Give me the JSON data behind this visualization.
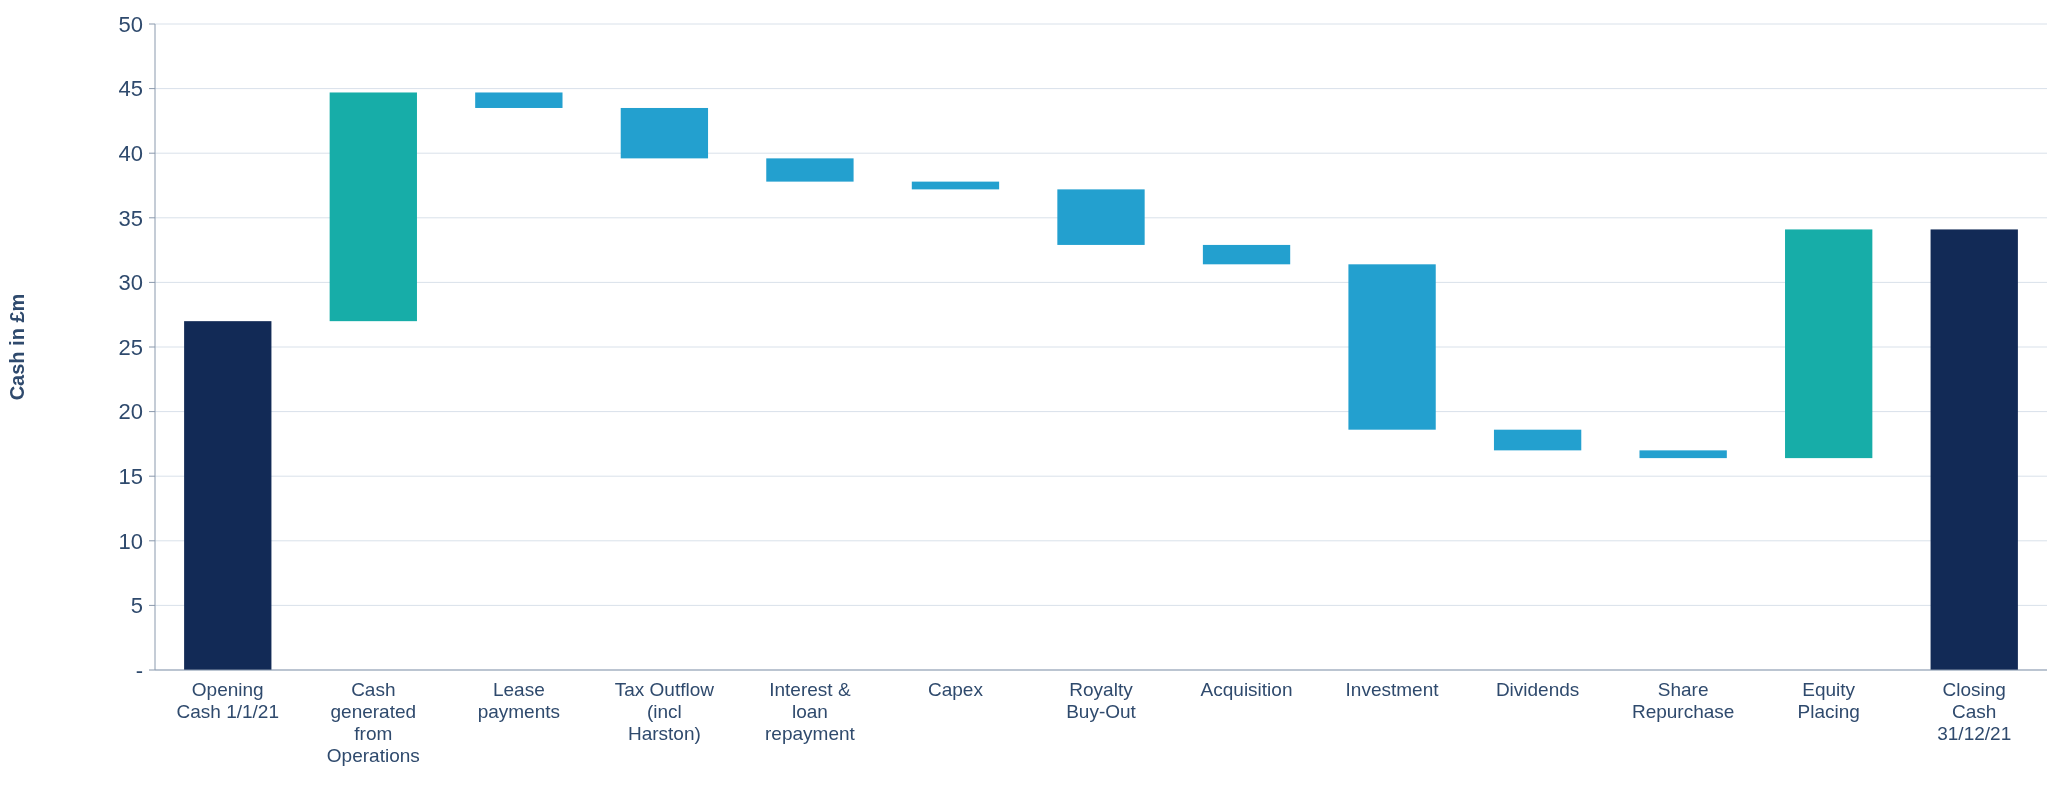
{
  "chart_data": {
    "type": "bar",
    "ylabel": "Cash in £m",
    "categories": [
      "Opening Cash 1/1/21",
      "Cash generated from Operations",
      "Lease payments",
      "Tax Outflow (incl Harston)",
      "Interest & loan repayment",
      "Capex",
      "Royalty Buy-Out",
      "Acquisition",
      "Investment",
      "Dividends",
      "Share Repurchase",
      "Equity Placing",
      "Closing Cash 31/12/21"
    ],
    "values": [
      27.0,
      17.7,
      -1.2,
      -3.9,
      -1.8,
      -0.6,
      -4.3,
      -1.5,
      -12.8,
      -1.6,
      -0.6,
      17.7,
      34.1
    ],
    "base": [
      0,
      27.0,
      44.7,
      43.5,
      39.6,
      37.8,
      37.2,
      32.9,
      31.4,
      18.6,
      17.0,
      16.4,
      0
    ],
    "colors": [
      "#122a56",
      "#17ada8",
      "#23a0cf",
      "#23a0cf",
      "#23a0cf",
      "#23a0cf",
      "#23a0cf",
      "#23a0cf",
      "#23a0cf",
      "#23a0cf",
      "#23a0cf",
      "#17ada8",
      "#122a56"
    ],
    "ylim": [
      0,
      50
    ],
    "yticks": [
      {
        "value": 0,
        "label": "-"
      },
      5,
      10,
      15,
      20,
      25,
      30,
      35,
      40,
      45,
      50
    ],
    "grid": "y"
  }
}
